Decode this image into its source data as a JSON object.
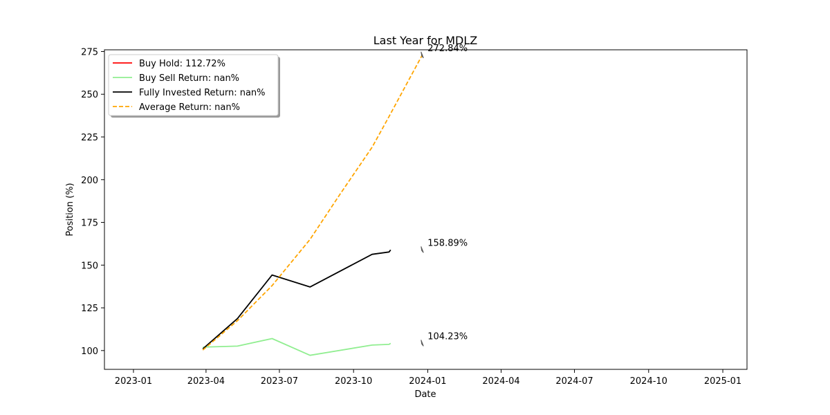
{
  "chart_data": {
    "type": "line",
    "title": "Last Year for MDLZ",
    "xlabel": "Date",
    "ylabel": "Position (%)",
    "xlim": [
      "2022-11-26",
      "2025-01-31"
    ],
    "ylim": [
      89,
      276
    ],
    "x_ticks": [
      "2023-01",
      "2023-04",
      "2023-07",
      "2023-10",
      "2024-01",
      "2024-04",
      "2024-07",
      "2024-10",
      "2025-01"
    ],
    "y_ticks": [
      100,
      125,
      150,
      175,
      200,
      225,
      250,
      275
    ],
    "legend_position": "upper left",
    "series": [
      {
        "name": "Buy Hold: 112.72%",
        "color": "#ff0000",
        "style": "solid",
        "x": [],
        "values": []
      },
      {
        "name": "Buy Sell Return: nan%",
        "color": "#90ee90",
        "style": "solid",
        "x": [
          "2023-03-28",
          "2023-05-10",
          "2023-06-22",
          "2023-08-08",
          "2023-10-24",
          "2023-11-14",
          "2023-11-16"
        ],
        "values": [
          102,
          102.6,
          107,
          97.2,
          103.2,
          103.6,
          104.2
        ]
      },
      {
        "name": "Fully Invested Return: nan%",
        "color": "#000000",
        "style": "solid",
        "x": [
          "2023-03-28",
          "2023-05-10",
          "2023-06-22",
          "2023-08-08",
          "2023-10-24",
          "2023-11-14",
          "2023-11-16"
        ],
        "values": [
          101,
          118.7,
          144.2,
          137.2,
          156.3,
          157.7,
          158.9
        ]
      },
      {
        "name": "Average Return: nan%",
        "color": "#ffa500",
        "style": "dashed",
        "x": [
          "2023-03-28",
          "2023-05-10",
          "2023-06-22",
          "2023-08-08",
          "2023-09-15",
          "2023-10-24",
          "2023-11-14",
          "2023-12-25"
        ],
        "values": [
          100.3,
          117.5,
          138,
          165,
          192,
          219,
          237,
          272.8
        ]
      }
    ],
    "annotations": [
      {
        "text": "272.84%",
        "x": "2023-12-25",
        "y": 272.84,
        "color": "#555555"
      },
      {
        "text": "158.89%",
        "x": "2023-12-25",
        "y": 158.89,
        "color": "#555555"
      },
      {
        "text": "104.23%",
        "x": "2023-12-25",
        "y": 104.23,
        "color": "#555555"
      }
    ]
  }
}
